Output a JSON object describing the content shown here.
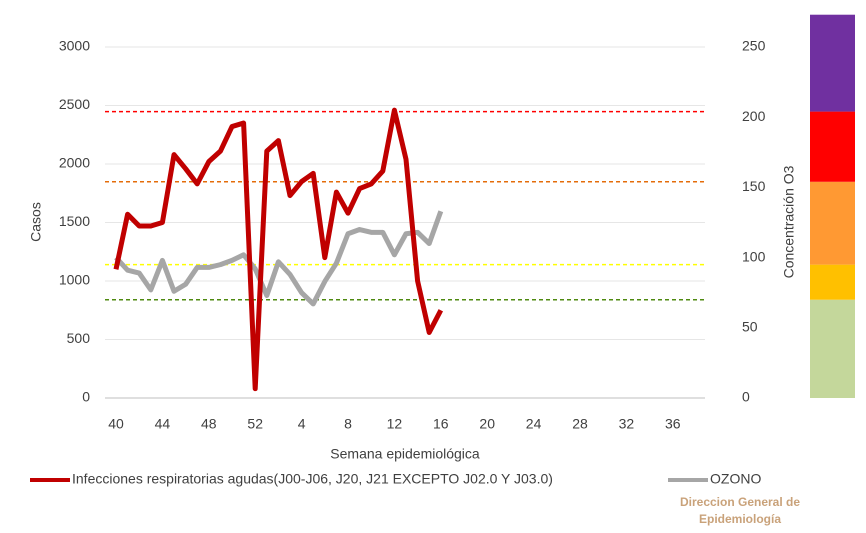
{
  "chart_data": {
    "type": "line",
    "y_label": "Casos",
    "y2_label": "Concentración O3",
    "x_label": "Semana epidemiológica",
    "categories": [
      "40",
      null,
      null,
      null,
      "44",
      null,
      null,
      null,
      "48",
      null,
      null,
      null,
      "52",
      null,
      null,
      null,
      "4",
      null,
      null,
      null,
      "8",
      null,
      null,
      null,
      "12",
      null,
      null,
      null,
      "16",
      null,
      null,
      null,
      "20",
      null,
      null,
      null,
      "24",
      null,
      null,
      null,
      "28",
      null,
      null,
      null,
      "32",
      null,
      null,
      null,
      "36",
      null,
      null,
      null
    ],
    "series": [
      {
        "name": "Infecciones respiratorias agudas(J00-J06, J20, J21 EXCEPTO J02.0 Y J03.0)",
        "color": "#c00000",
        "axis": "y",
        "values": [
          1100,
          1570,
          1470,
          1470,
          1500,
          2080,
          1960,
          1830,
          2020,
          2110,
          2320,
          2350,
          80,
          2110,
          2200,
          1730,
          1850,
          1920,
          1200,
          1760,
          1580,
          1790,
          1830,
          1940,
          2460,
          2040,
          1000,
          560,
          750,
          null,
          null,
          null,
          null,
          null,
          null,
          null,
          null,
          null,
          null,
          null,
          null,
          null,
          null,
          null,
          null,
          null,
          null,
          null,
          null,
          null,
          null,
          null
        ]
      },
      {
        "name": "OZONO",
        "color": "#a6a6a6",
        "axis": "y2",
        "values": [
          100,
          91,
          89,
          77,
          98,
          76,
          81,
          93,
          93,
          95,
          98,
          102,
          92,
          73,
          97,
          88,
          75,
          67,
          83,
          96,
          117,
          120,
          118,
          118,
          102,
          117,
          118,
          110,
          133,
          null,
          null,
          null,
          null,
          null,
          null,
          null,
          null,
          null,
          null,
          null,
          null,
          null,
          null,
          null,
          null,
          null,
          null,
          null,
          null,
          null,
          null,
          null
        ]
      }
    ],
    "ylim": [
      0,
      3000
    ],
    "yticks": [
      0,
      500,
      1000,
      1500,
      2000,
      2500,
      3000
    ],
    "y2lim": [
      0,
      250
    ],
    "y2ticks": [
      0,
      50,
      100,
      150,
      200,
      250
    ],
    "grid": true,
    "reference_lines": [
      {
        "value": 204,
        "color": "#ff0000"
      },
      {
        "value": 154,
        "color": "#e46c0a"
      },
      {
        "value": 95,
        "color": "#ffff00"
      },
      {
        "value": 70,
        "color": "#4f8a10"
      }
    ],
    "bands": [
      {
        "from": 0,
        "to": 70,
        "color": "#c4d79b"
      },
      {
        "from": 70,
        "to": 95,
        "color": "#ffc000"
      },
      {
        "from": 95,
        "to": 154,
        "color": "#ff9933"
      },
      {
        "from": 154,
        "to": 204,
        "color": "#ff0000"
      },
      {
        "from": 204,
        "to": 273,
        "color": "#7030a0"
      }
    ],
    "legend": "bottom",
    "logo": [
      "Direccion General de",
      "Epidemiología"
    ]
  }
}
